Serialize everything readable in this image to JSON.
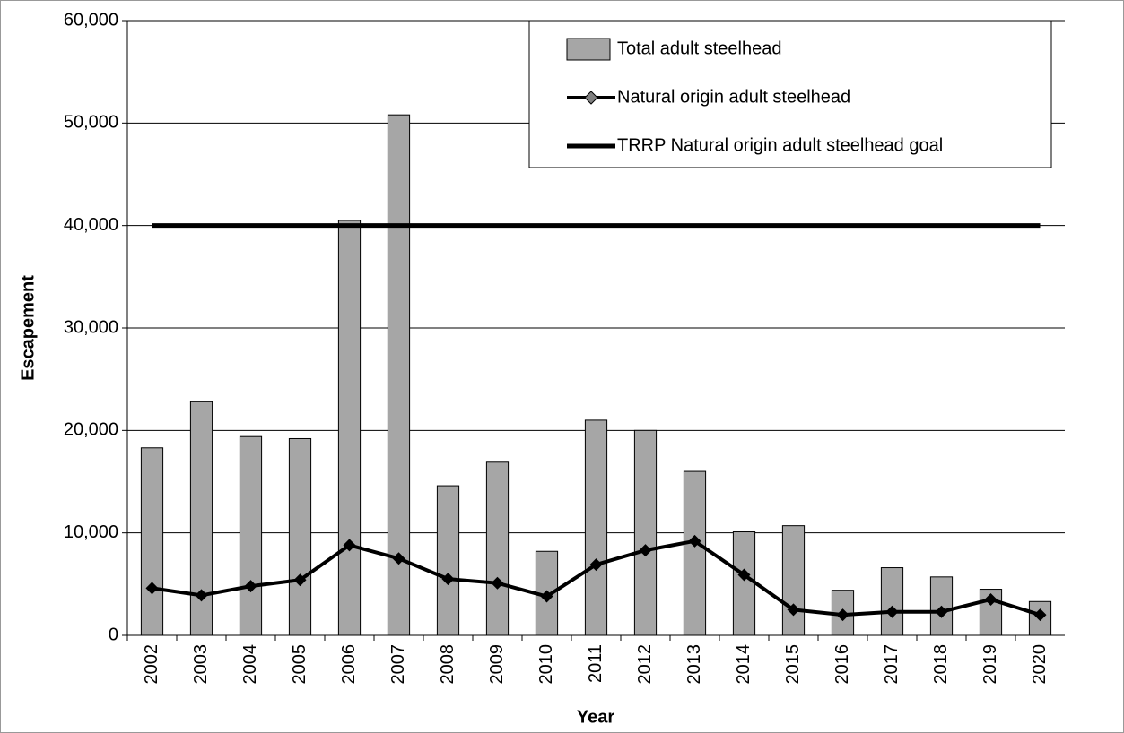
{
  "chart_data": {
    "type": "bar",
    "x_label": "Year",
    "y_label": "Escapement",
    "categories": [
      "2002",
      "2003",
      "2004",
      "2005",
      "2006",
      "2007",
      "2008",
      "2009",
      "2010",
      "2011",
      "2012",
      "2013",
      "2014",
      "2015",
      "2016",
      "2017",
      "2018",
      "2019",
      "2020"
    ],
    "series": [
      {
        "name": "Total adult steelhead",
        "type": "bar",
        "color": "#a6a6a6",
        "values": [
          18300,
          22800,
          19400,
          19200,
          40500,
          50800,
          14600,
          16900,
          8200,
          21000,
          20000,
          16000,
          10100,
          10700,
          4400,
          6600,
          5700,
          4500,
          3300
        ]
      },
      {
        "name": "Natural origin adult steelhead",
        "type": "line",
        "color": "#000000",
        "marker": "diamond",
        "values": [
          4600,
          3900,
          4800,
          5400,
          8800,
          7500,
          5500,
          5100,
          3800,
          6900,
          8300,
          9200,
          5900,
          2500,
          2000,
          2300,
          2300,
          3500,
          2000
        ]
      },
      {
        "name": "TRRP Natural origin adult steelhead goal",
        "type": "line",
        "color": "#000000",
        "values": [
          40000,
          40000,
          40000,
          40000,
          40000,
          40000,
          40000,
          40000,
          40000,
          40000,
          40000,
          40000,
          40000,
          40000,
          40000,
          40000,
          40000,
          40000,
          40000
        ]
      }
    ],
    "ylim": [
      0,
      60000
    ],
    "yticks": [
      0,
      {
        "value": 10000,
        "label": "10,000"
      },
      {
        "value": 20000,
        "label": "20,000"
      },
      {
        "value": 30000,
        "label": "30,000"
      },
      {
        "value": 40000,
        "label": "40,000"
      },
      {
        "value": 50000,
        "label": "50,000"
      },
      {
        "value": 60000,
        "label": "60,000"
      }
    ],
    "grid": true,
    "legend": "top-right"
  }
}
